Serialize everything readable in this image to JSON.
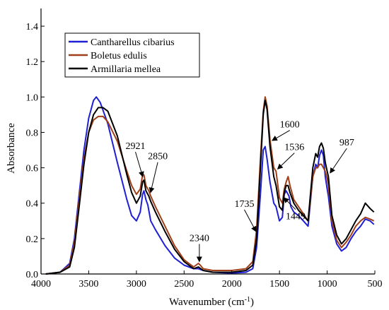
{
  "chart_data": {
    "type": "line",
    "xlabel": "Wavenumber (cm",
    "xlabel_sup": "-1",
    "xlabel_end": ")",
    "ylabel": "Absorbance",
    "xlim": [
      4000,
      500
    ],
    "ylim": [
      0,
      1.5
    ],
    "x_reversed": true,
    "xticks": [
      4000,
      3500,
      3000,
      2500,
      2000,
      1500,
      1000,
      500
    ],
    "yticks": [
      0.0,
      0.2,
      0.4,
      0.6,
      0.8,
      1.0,
      1.2,
      1.4
    ],
    "ytick_labels": [
      "0.0",
      "0.2",
      "0.4",
      "0.6",
      "0.8",
      "1.0",
      "1.2",
      "1.4"
    ],
    "grid": false,
    "legend_position": "top-left",
    "series": [
      {
        "name": "Cantharellus cibarius",
        "color": "#1f1fd6",
        "points": [
          [
            3950,
            0.0
          ],
          [
            3800,
            0.01
          ],
          [
            3700,
            0.06
          ],
          [
            3650,
            0.2
          ],
          [
            3600,
            0.45
          ],
          [
            3550,
            0.7
          ],
          [
            3500,
            0.88
          ],
          [
            3450,
            0.98
          ],
          [
            3420,
            1.0
          ],
          [
            3380,
            0.97
          ],
          [
            3300,
            0.85
          ],
          [
            3200,
            0.63
          ],
          [
            3100,
            0.42
          ],
          [
            3050,
            0.33
          ],
          [
            3000,
            0.3
          ],
          [
            2960,
            0.35
          ],
          [
            2935,
            0.45
          ],
          [
            2921,
            0.47
          ],
          [
            2900,
            0.42
          ],
          [
            2880,
            0.39
          ],
          [
            2850,
            0.3
          ],
          [
            2800,
            0.25
          ],
          [
            2700,
            0.16
          ],
          [
            2600,
            0.09
          ],
          [
            2500,
            0.05
          ],
          [
            2400,
            0.03
          ],
          [
            2350,
            0.03
          ],
          [
            2300,
            0.02
          ],
          [
            2200,
            0.01
          ],
          [
            2000,
            0.005
          ],
          [
            1850,
            0.01
          ],
          [
            1780,
            0.03
          ],
          [
            1740,
            0.15
          ],
          [
            1700,
            0.45
          ],
          [
            1670,
            0.7
          ],
          [
            1650,
            0.72
          ],
          [
            1630,
            0.65
          ],
          [
            1600,
            0.52
          ],
          [
            1560,
            0.4
          ],
          [
            1536,
            0.38
          ],
          [
            1500,
            0.3
          ],
          [
            1470,
            0.32
          ],
          [
            1450,
            0.45
          ],
          [
            1430,
            0.47
          ],
          [
            1400,
            0.44
          ],
          [
            1380,
            0.38
          ],
          [
            1350,
            0.35
          ],
          [
            1300,
            0.33
          ],
          [
            1250,
            0.3
          ],
          [
            1200,
            0.27
          ],
          [
            1150,
            0.55
          ],
          [
            1120,
            0.62
          ],
          [
            1100,
            0.6
          ],
          [
            1080,
            0.67
          ],
          [
            1060,
            0.7
          ],
          [
            1040,
            0.67
          ],
          [
            1020,
            0.55
          ],
          [
            1000,
            0.48
          ],
          [
            987,
            0.44
          ],
          [
            950,
            0.27
          ],
          [
            900,
            0.17
          ],
          [
            850,
            0.13
          ],
          [
            800,
            0.15
          ],
          [
            750,
            0.2
          ],
          [
            700,
            0.24
          ],
          [
            650,
            0.27
          ],
          [
            600,
            0.31
          ],
          [
            550,
            0.3
          ],
          [
            510,
            0.28
          ]
        ]
      },
      {
        "name": "Boletus edulis",
        "color": "#a0401a",
        "points": [
          [
            3950,
            0.0
          ],
          [
            3800,
            0.01
          ],
          [
            3700,
            0.05
          ],
          [
            3650,
            0.18
          ],
          [
            3600,
            0.42
          ],
          [
            3550,
            0.65
          ],
          [
            3500,
            0.8
          ],
          [
            3450,
            0.87
          ],
          [
            3400,
            0.89
          ],
          [
            3350,
            0.89
          ],
          [
            3300,
            0.86
          ],
          [
            3200,
            0.75
          ],
          [
            3100,
            0.58
          ],
          [
            3050,
            0.5
          ],
          [
            3000,
            0.45
          ],
          [
            2960,
            0.48
          ],
          [
            2935,
            0.56
          ],
          [
            2921,
            0.56
          ],
          [
            2900,
            0.5
          ],
          [
            2870,
            0.47
          ],
          [
            2850,
            0.44
          ],
          [
            2800,
            0.38
          ],
          [
            2700,
            0.27
          ],
          [
            2600,
            0.16
          ],
          [
            2500,
            0.08
          ],
          [
            2400,
            0.04
          ],
          [
            2350,
            0.06
          ],
          [
            2330,
            0.05
          ],
          [
            2300,
            0.03
          ],
          [
            2200,
            0.02
          ],
          [
            2000,
            0.02
          ],
          [
            1850,
            0.03
          ],
          [
            1780,
            0.07
          ],
          [
            1740,
            0.25
          ],
          [
            1700,
            0.65
          ],
          [
            1670,
            0.92
          ],
          [
            1650,
            1.0
          ],
          [
            1630,
            0.95
          ],
          [
            1600,
            0.76
          ],
          [
            1560,
            0.6
          ],
          [
            1536,
            0.58
          ],
          [
            1500,
            0.43
          ],
          [
            1470,
            0.4
          ],
          [
            1450,
            0.48
          ],
          [
            1430,
            0.52
          ],
          [
            1410,
            0.55
          ],
          [
            1390,
            0.5
          ],
          [
            1350,
            0.42
          ],
          [
            1300,
            0.38
          ],
          [
            1250,
            0.34
          ],
          [
            1200,
            0.3
          ],
          [
            1150,
            0.55
          ],
          [
            1120,
            0.6
          ],
          [
            1100,
            0.6
          ],
          [
            1080,
            0.62
          ],
          [
            1060,
            0.62
          ],
          [
            1040,
            0.6
          ],
          [
            1020,
            0.58
          ],
          [
            1000,
            0.54
          ],
          [
            987,
            0.5
          ],
          [
            950,
            0.3
          ],
          [
            900,
            0.19
          ],
          [
            850,
            0.15
          ],
          [
            800,
            0.18
          ],
          [
            750,
            0.22
          ],
          [
            700,
            0.27
          ],
          [
            650,
            0.3
          ],
          [
            600,
            0.32
          ],
          [
            550,
            0.31
          ],
          [
            510,
            0.3
          ]
        ]
      },
      {
        "name": "Armillaria mellea",
        "color": "#000000",
        "points": [
          [
            3950,
            0.0
          ],
          [
            3800,
            0.01
          ],
          [
            3700,
            0.04
          ],
          [
            3650,
            0.15
          ],
          [
            3600,
            0.38
          ],
          [
            3550,
            0.62
          ],
          [
            3500,
            0.8
          ],
          [
            3450,
            0.9
          ],
          [
            3400,
            0.94
          ],
          [
            3350,
            0.94
          ],
          [
            3300,
            0.92
          ],
          [
            3200,
            0.78
          ],
          [
            3100,
            0.56
          ],
          [
            3050,
            0.46
          ],
          [
            3000,
            0.4
          ],
          [
            2960,
            0.44
          ],
          [
            2935,
            0.52
          ],
          [
            2921,
            0.53
          ],
          [
            2900,
            0.47
          ],
          [
            2870,
            0.44
          ],
          [
            2850,
            0.41
          ],
          [
            2800,
            0.35
          ],
          [
            2700,
            0.24
          ],
          [
            2600,
            0.14
          ],
          [
            2500,
            0.07
          ],
          [
            2400,
            0.03
          ],
          [
            2350,
            0.04
          ],
          [
            2300,
            0.02
          ],
          [
            2200,
            0.01
          ],
          [
            2000,
            0.01
          ],
          [
            1850,
            0.02
          ],
          [
            1780,
            0.05
          ],
          [
            1740,
            0.2
          ],
          [
            1700,
            0.6
          ],
          [
            1670,
            0.9
          ],
          [
            1650,
            0.98
          ],
          [
            1630,
            0.93
          ],
          [
            1600,
            0.72
          ],
          [
            1560,
            0.55
          ],
          [
            1536,
            0.5
          ],
          [
            1500,
            0.38
          ],
          [
            1470,
            0.36
          ],
          [
            1450,
            0.46
          ],
          [
            1430,
            0.5
          ],
          [
            1410,
            0.5
          ],
          [
            1390,
            0.46
          ],
          [
            1350,
            0.4
          ],
          [
            1300,
            0.36
          ],
          [
            1250,
            0.33
          ],
          [
            1200,
            0.3
          ],
          [
            1150,
            0.6
          ],
          [
            1120,
            0.68
          ],
          [
            1100,
            0.66
          ],
          [
            1080,
            0.72
          ],
          [
            1060,
            0.74
          ],
          [
            1040,
            0.71
          ],
          [
            1020,
            0.63
          ],
          [
            1000,
            0.58
          ],
          [
            987,
            0.55
          ],
          [
            950,
            0.33
          ],
          [
            900,
            0.22
          ],
          [
            850,
            0.17
          ],
          [
            800,
            0.2
          ],
          [
            750,
            0.25
          ],
          [
            700,
            0.3
          ],
          [
            650,
            0.34
          ],
          [
            600,
            0.4
          ],
          [
            550,
            0.37
          ],
          [
            510,
            0.35
          ]
        ]
      }
    ],
    "annotations": [
      {
        "label": "2921",
        "x": 2921,
        "y": 0.53
      },
      {
        "label": "2850",
        "x": 2850,
        "y": 0.44
      },
      {
        "label": "2340",
        "x": 2340,
        "y": 0.05
      },
      {
        "label": "1735",
        "x": 1735,
        "y": 0.22
      },
      {
        "label": "1600",
        "x": 1600,
        "y": 0.74
      },
      {
        "label": "1536",
        "x": 1536,
        "y": 0.58
      },
      {
        "label": "1449",
        "x": 1449,
        "y": 0.46
      },
      {
        "label": "987",
        "x": 987,
        "y": 0.55
      }
    ]
  }
}
